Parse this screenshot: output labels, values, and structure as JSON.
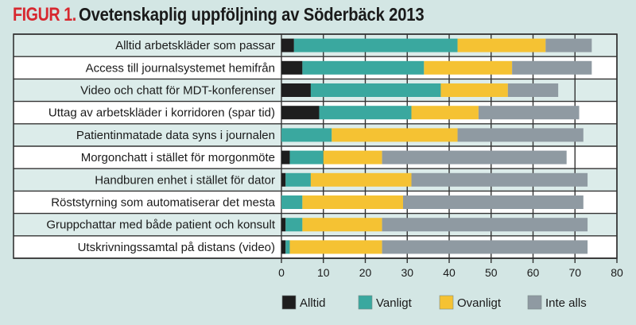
{
  "title": {
    "prefix": "FIGUR 1.",
    "text": "Ovetenskaplig uppföljning av Söderbäck 2013"
  },
  "colors": {
    "background": "#d3e6e4",
    "title_prefix": "#d7282f",
    "row_alt": "#dcecea",
    "row_plain": "#ffffff",
    "grid": "#333333"
  },
  "chart_data": {
    "type": "bar",
    "orientation": "horizontal",
    "stacked": true,
    "title": "FIGUR 1. Ovetenskaplig uppföljning av Söderbäck 2013",
    "xlabel": "",
    "ylabel": "",
    "xlim": [
      0,
      80
    ],
    "xticks": [
      0,
      10,
      20,
      30,
      40,
      50,
      60,
      70,
      80
    ],
    "grid": true,
    "legend_position": "bottom",
    "categories": [
      "Alltid arbetskläder som passar",
      "Access till journalsystemet hemifrån",
      "Video och chatt för MDT-konferenser",
      "Uttag av arbetskläder i korridoren (spar tid)",
      "Patientinmatade data syns i journalen",
      "Morgonchatt i stället för morgonmöte",
      "Handburen enhet i stället för dator",
      "Röststyrning som automatiserar det mesta",
      "Gruppchattar med både patient och konsult",
      "Utskrivningssamtal på distans (video)"
    ],
    "series": [
      {
        "name": "Alltid",
        "color": "#1e1e1e",
        "values": [
          3,
          5,
          7,
          9,
          0,
          2,
          1,
          0,
          1,
          1
        ]
      },
      {
        "name": "Vanligt",
        "color": "#3aa89f",
        "values": [
          39,
          29,
          31,
          22,
          12,
          8,
          6,
          5,
          4,
          1
        ]
      },
      {
        "name": "Ovanligt",
        "color": "#f5c233",
        "values": [
          21,
          21,
          16,
          16,
          30,
          14,
          24,
          24,
          19,
          22
        ]
      },
      {
        "name": "Inte alls",
        "color": "#8f9aa2",
        "values": [
          11,
          19,
          12,
          24,
          30,
          44,
          42,
          43,
          49,
          49
        ]
      }
    ]
  }
}
